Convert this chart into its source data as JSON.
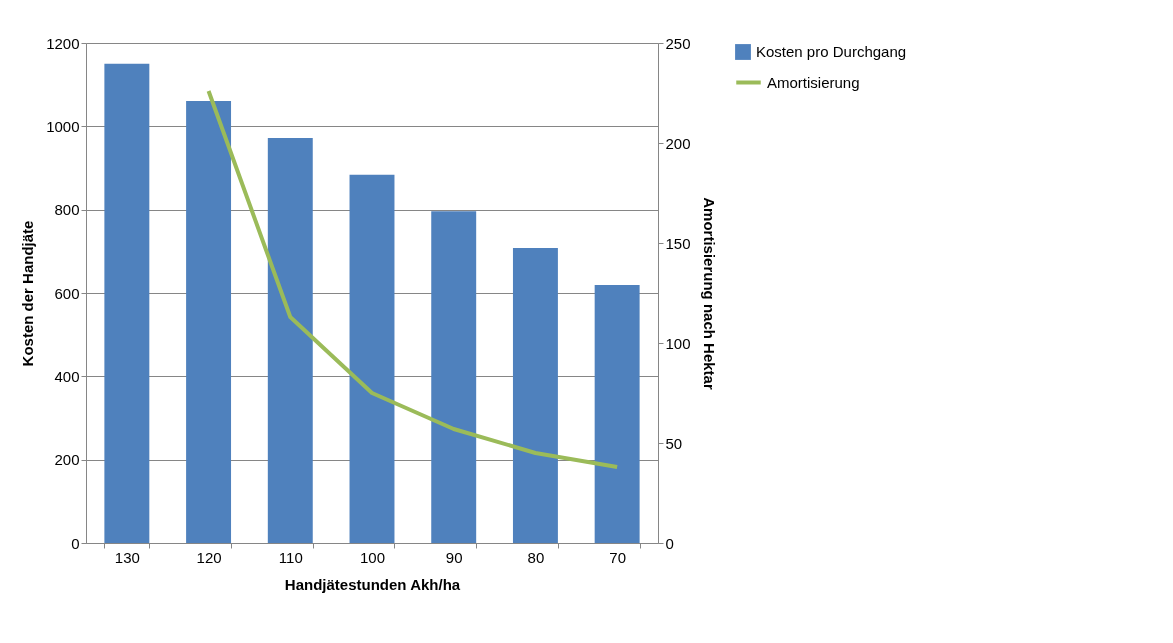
{
  "chart_data": {
    "type": "bar",
    "xlabel": "Handjätestunden Akh/ha",
    "ylabel": "Kosten der Handjäte",
    "y2label": "Amortisierung nach Hektar",
    "categories": [
      "130",
      "120",
      "110",
      "100",
      "90",
      "80",
      "70"
    ],
    "ylim": [
      0,
      1200
    ],
    "yticks": [
      0,
      200,
      400,
      600,
      800,
      1000,
      1200
    ],
    "y2lim": [
      0,
      250
    ],
    "y2ticks": [
      0,
      50,
      100,
      150,
      200,
      250
    ],
    "grid": "y",
    "legend": "right",
    "series": [
      {
        "name": "Kosten pro Durchgang",
        "color": "#4f81bd",
        "values": [
          1150,
          1061,
          972,
          884,
          796,
          708,
          619
        ]
      },
      {
        "name": "Amortisierung",
        "color": "#9bbb59",
        "type": "line",
        "axis": "y2",
        "values": [
          null,
          226,
          113,
          75,
          57,
          45,
          38
        ]
      }
    ]
  }
}
